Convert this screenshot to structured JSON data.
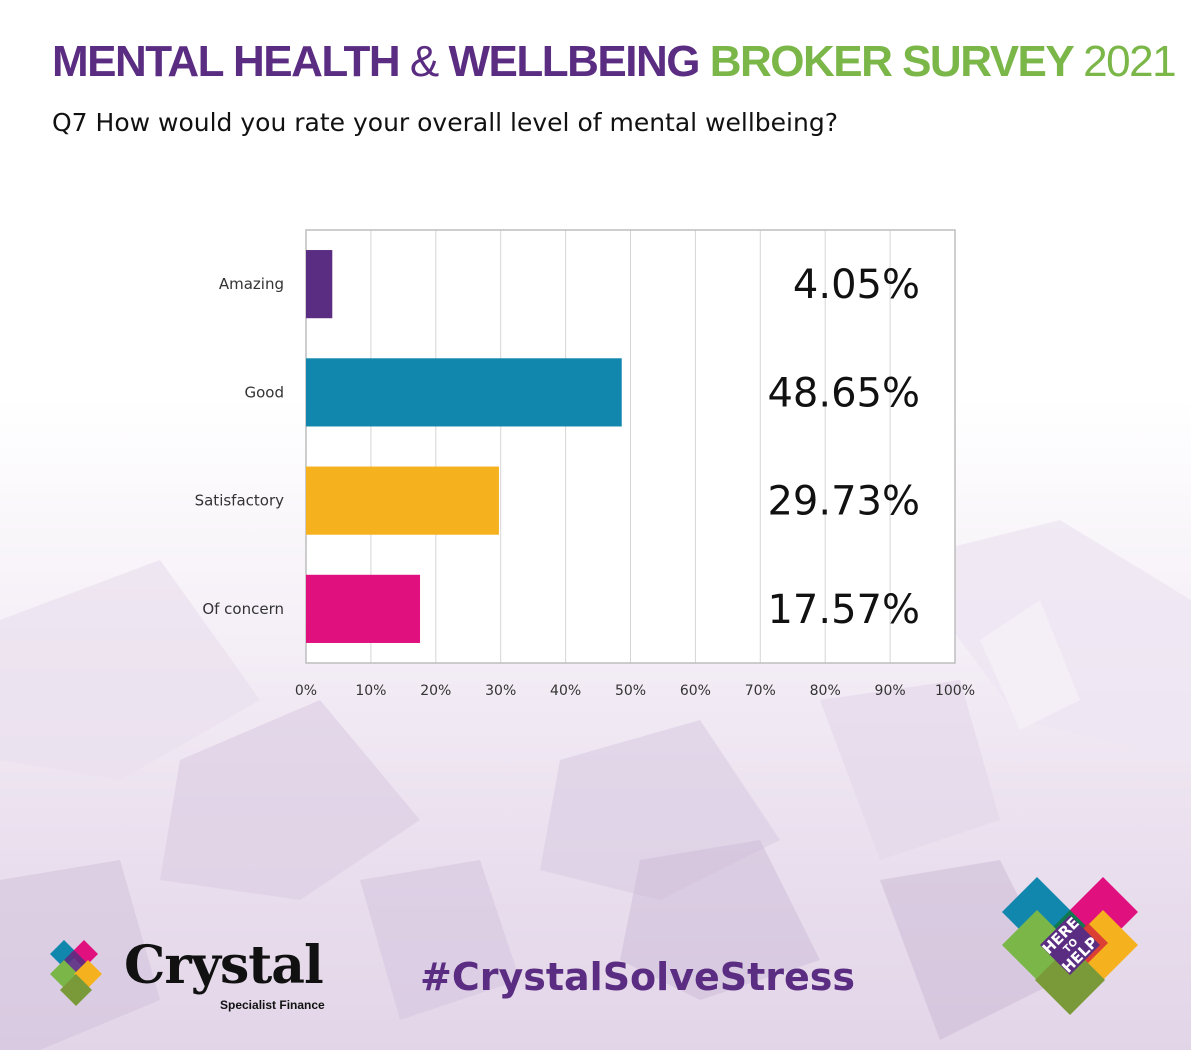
{
  "header": {
    "title_part1": "MENTAL HEALTH",
    "title_amp": "&",
    "title_part2": "WELLBEING",
    "title_part3": "BROKER SURVEY",
    "title_year": "2021",
    "question": "Q7 How would you rate your overall level of mental wellbeing?"
  },
  "chart_data": {
    "type": "bar",
    "orientation": "horizontal",
    "title": "",
    "xlabel": "",
    "ylabel": "",
    "categories": [
      "Amazing",
      "Good",
      "Satisfactory",
      "Of concern"
    ],
    "values": [
      4.05,
      48.65,
      29.73,
      17.57
    ],
    "data_labels": [
      "4.05%",
      "48.65%",
      "29.73%",
      "17.57%"
    ],
    "colors": [
      "#5b2d82",
      "#1287ae",
      "#f6b21e",
      "#e0117f"
    ],
    "xlim": [
      0,
      100
    ],
    "x_ticks": [
      "0%",
      "10%",
      "20%",
      "30%",
      "40%",
      "50%",
      "60%",
      "70%",
      "80%",
      "90%",
      "100%"
    ],
    "grid": true,
    "legend": "none"
  },
  "footer": {
    "logo_word": "Crystal",
    "logo_sub": "Specialist Finance",
    "hashtag": "#CrystalSolveStress",
    "badge_text": [
      "HERE",
      "TO",
      "HELP"
    ],
    "brand_colors": [
      "#1287ae",
      "#e0117f",
      "#7ab648",
      "#f6b21e",
      "#5b2d82"
    ]
  }
}
